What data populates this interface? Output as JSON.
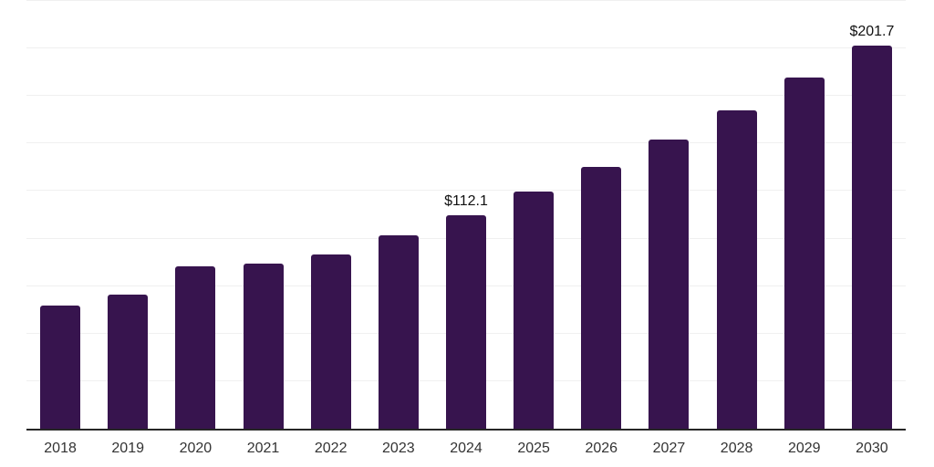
{
  "chart_data": {
    "type": "bar",
    "categories": [
      "2018",
      "2019",
      "2020",
      "2021",
      "2022",
      "2023",
      "2024",
      "2025",
      "2026",
      "2027",
      "2028",
      "2029",
      "2030"
    ],
    "values": [
      64.6,
      70.6,
      85.5,
      86.8,
      91.5,
      101.6,
      112.1,
      124.8,
      137.9,
      152.3,
      167.6,
      184.9,
      201.7
    ],
    "annotations": [
      {
        "category": "2024",
        "text": "$112.1"
      },
      {
        "category": "2030",
        "text": "$201.7"
      }
    ],
    "xlabel": "",
    "ylabel": "",
    "ylim": [
      0,
      225
    ],
    "gridline_step": 25,
    "grid": true,
    "legend": false,
    "colors": {
      "bar": "#37144e",
      "gridline": "#f0f0f0",
      "axis_line": "#262626",
      "tick_label": "#333333",
      "annotation": "#111111",
      "background": "#ffffff"
    }
  }
}
